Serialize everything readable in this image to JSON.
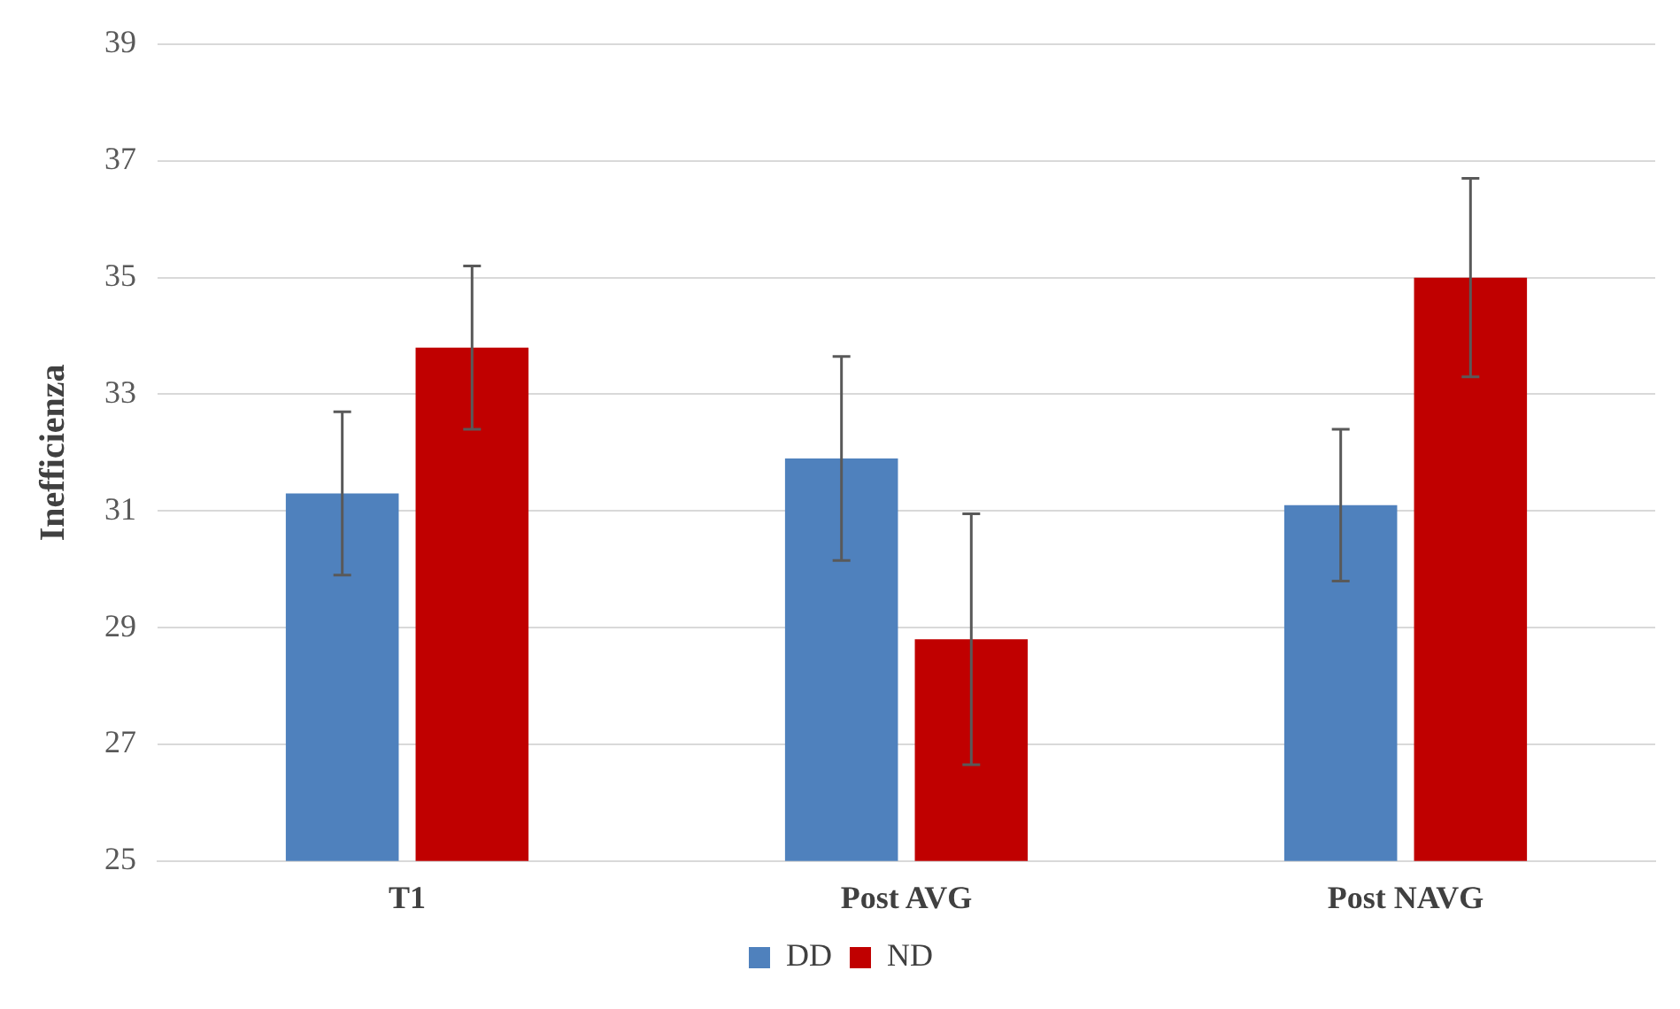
{
  "chart_data": {
    "type": "bar",
    "ylabel": "Inefficienza",
    "categories": [
      "T1",
      "Post AVG",
      "Post NAVG"
    ],
    "series": [
      {
        "name": "DD",
        "color": "#4f81bd",
        "values": [
          31.3,
          31.9,
          31.1
        ],
        "errors": [
          1.4,
          1.75,
          1.3
        ]
      },
      {
        "name": "ND",
        "color": "#c00000",
        "values": [
          33.8,
          28.8,
          35.0
        ],
        "errors": [
          1.4,
          2.15,
          1.7
        ]
      }
    ],
    "ylim": [
      25,
      39
    ],
    "yticks": [
      25,
      27,
      29,
      31,
      33,
      35,
      37,
      39
    ],
    "grid": "y",
    "legend": "bottom"
  }
}
